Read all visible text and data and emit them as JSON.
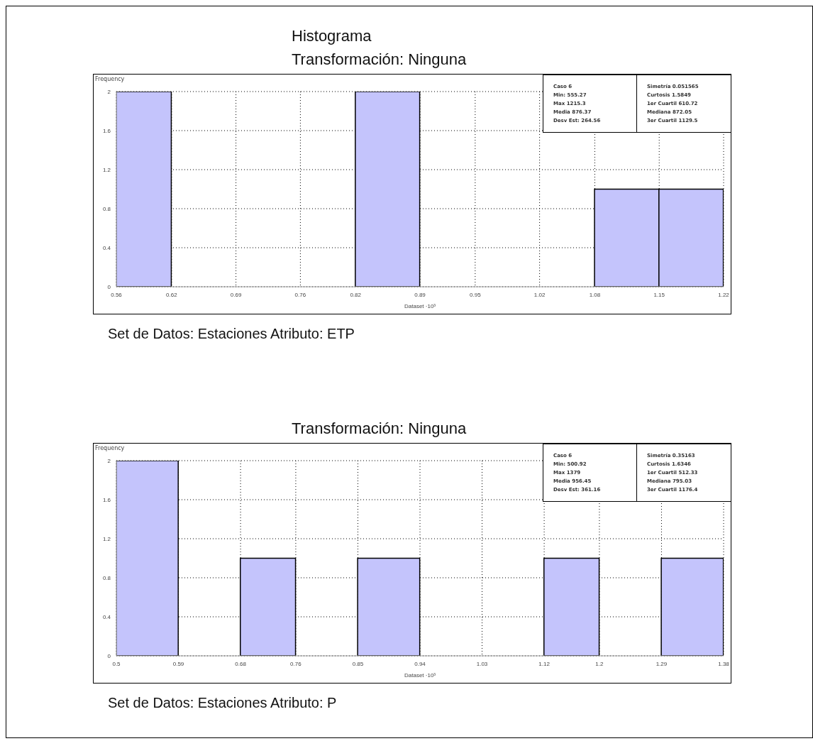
{
  "chart_data": [
    {
      "type": "histogram",
      "title": "Histograma",
      "subtitle": "Transformación: Ninguna",
      "xlabel": "Dataset ·10³",
      "ylabel": "Frequency",
      "bins": [
        0.56,
        0.62,
        0.82,
        0.89,
        1.08,
        1.15,
        1.22
      ],
      "values": [
        2,
        0,
        2,
        0,
        1,
        1
      ],
      "color": "#c4c4fc",
      "xlim": [
        0.56,
        1.22
      ],
      "xticks": [
        0.56,
        0.62,
        0.69,
        0.76,
        0.82,
        0.89,
        0.95,
        1.02,
        1.08,
        1.15,
        1.22
      ],
      "ylim": [
        0,
        2
      ],
      "yticks": [
        0,
        0.4,
        0.8,
        1.2,
        1.6,
        2
      ],
      "grid": true,
      "annotations": [
        "Caso 6",
        "Min: 555.27",
        "Max 1215.3",
        "Media 876.37",
        "Desv Est: 264.56",
        "Simetría 0.051565",
        "Curtosis 1.5849",
        "1er Cuartil 610.72",
        "Mediana 872.05",
        "3er Cuartil 1129.5",
        "Set de Datos: Estaciones  Atributo: ETP"
      ]
    },
    {
      "type": "histogram",
      "title": "Transformación: Ninguna",
      "xlabel": "Dataset ·10³",
      "ylabel": "Frequency",
      "bins": [
        0.5,
        0.59,
        0.68,
        0.76,
        0.85,
        0.94,
        1.12,
        1.2,
        1.29,
        1.38
      ],
      "values": [
        2,
        0,
        1,
        0,
        1,
        0,
        1,
        0,
        1
      ],
      "color": "#c4c4fc",
      "xlim": [
        0.5,
        1.38
      ],
      "xticks": [
        0.5,
        0.59,
        0.68,
        0.76,
        0.85,
        0.94,
        1.03,
        1.12,
        1.2,
        1.29,
        1.38
      ],
      "ylim": [
        0,
        2
      ],
      "yticks": [
        0,
        0.4,
        0.8,
        1.2,
        1.6,
        2
      ],
      "grid": true,
      "annotations": [
        "Caso 6",
        "Min: 500.92",
        "Max 1379",
        "Media 956.45",
        "Desv Est: 361.16",
        "Simetría 0.35163",
        "Curtosis 1.6346",
        "1er Cuartil 512.33",
        "Mediana 795.03",
        "3er Cuartil 1176.4",
        "Set de Datos: Estaciones  Atributo: P"
      ]
    }
  ]
}
